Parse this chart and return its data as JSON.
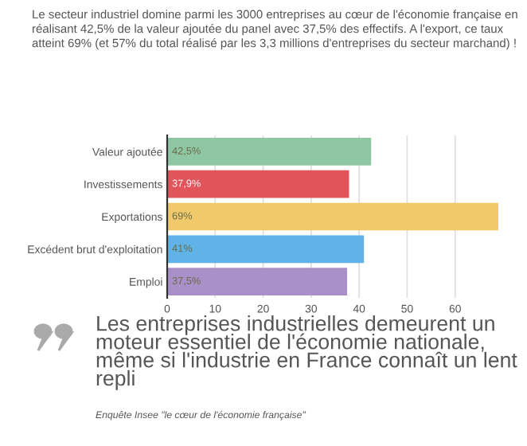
{
  "chart_data": {
    "type": "bar",
    "orientation": "horizontal",
    "title": "Le secteur industriel domine parmi les 3000 entreprises au cœur de l'économie française en réalisant 42,5% de la valeur ajoutée du panel avec 37,5% des effectifs. A l'export, ce taux atteint 69% (et 57% du total réalisé par les 3,3 millions d'entreprises du secteur marchand) !",
    "categories": [
      "Valeur ajoutée",
      "Investissements",
      "Exportations",
      "Excédent brut d'exploitation",
      "Emploi"
    ],
    "values": [
      42.5,
      37.9,
      69,
      41,
      37.5
    ],
    "colors": [
      "#8fc7a4",
      "#e0545a",
      "#f0c96a",
      "#5fb3e6",
      "#a990c9"
    ],
    "value_labels": [
      "42,5%",
      "37,9%",
      "69%",
      "41%",
      "37,5%"
    ],
    "xlim": [
      0,
      69
    ],
    "xticks": [
      0,
      10,
      20,
      30,
      40,
      50,
      60
    ],
    "grid": "x",
    "annotations": [
      "Les entreprises industrielles demeurent un moteur essentiel de l'économie nationale, même si l'industrie en France connaît un lent repli",
      "Enquête Insee \"le cœur de l'économie française\""
    ]
  }
}
